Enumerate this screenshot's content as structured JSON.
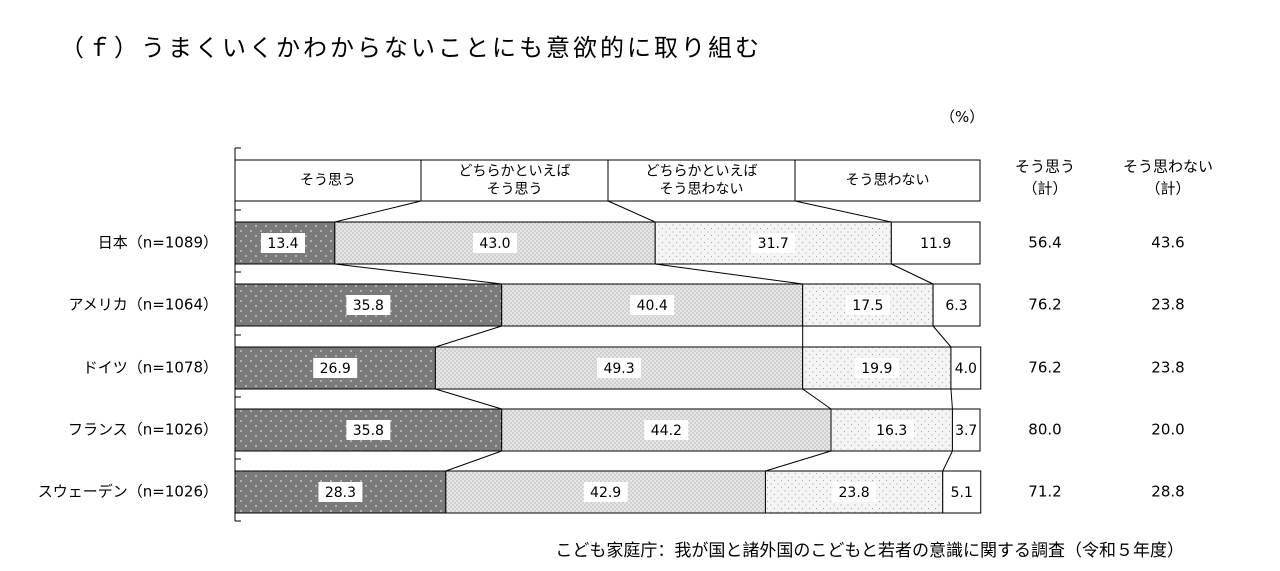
{
  "title": "（ｆ）うまくいくかわからないことにも意欲的に取り組む",
  "unit": "（%）",
  "source": "こども家庭庁：我が国と諸外国のこどもと若者の意識に関する調査（令和５年度）",
  "colors": {
    "s1": "#7a7a7a",
    "s2": "#e6e6e6",
    "s3": "#f4f4f4",
    "s4": "#ffffff",
    "stroke": "#000000"
  },
  "chart_data": {
    "type": "bar",
    "orientation": "horizontal",
    "stacked": true,
    "xlim": [
      0,
      100
    ],
    "categories": [
      "日本（n=1089）",
      "アメリカ（n=1064）",
      "ドイツ（n=1078）",
      "フランス（n=1026）",
      "スウェーデン（n=1026）"
    ],
    "series": [
      {
        "name": "そう思う",
        "values": [
          13.4,
          35.8,
          26.9,
          35.8,
          28.3
        ]
      },
      {
        "name": "どちらかといえば\nそう思う",
        "values": [
          43.0,
          40.4,
          49.3,
          44.2,
          42.9
        ]
      },
      {
        "name": "どちらかといえば\nそう思わない",
        "values": [
          31.7,
          17.5,
          19.9,
          16.3,
          23.8
        ]
      },
      {
        "name": "そう思わない",
        "values": [
          11.9,
          6.3,
          4.0,
          3.7,
          5.1
        ]
      }
    ],
    "summary_headers": [
      "そう思う\n（計）",
      "そう思わない\n（計）"
    ],
    "summary": [
      [
        "56.4",
        "43.6"
      ],
      [
        "76.2",
        "23.8"
      ],
      [
        "76.2",
        "23.8"
      ],
      [
        "80.0",
        "20.0"
      ],
      [
        "71.2",
        "28.8"
      ]
    ]
  }
}
